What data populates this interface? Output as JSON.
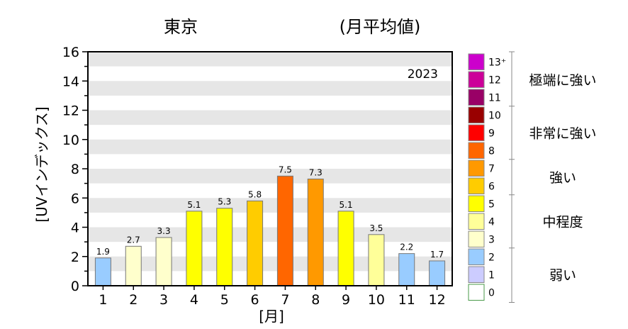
{
  "chart_data": {
    "type": "bar",
    "title_left": "東京",
    "title_right": "(月平均値)",
    "year_label": "2023",
    "xlabel": "[月]",
    "ylabel": "[UVインデックス]",
    "ylim": [
      0,
      16
    ],
    "yticks": [
      0,
      2,
      4,
      6,
      8,
      10,
      12,
      14,
      16
    ],
    "categories": [
      "1",
      "2",
      "3",
      "4",
      "5",
      "6",
      "7",
      "8",
      "9",
      "10",
      "11",
      "12"
    ],
    "values": [
      1.9,
      2.7,
      3.3,
      5.1,
      5.3,
      5.8,
      7.5,
      7.3,
      5.1,
      3.5,
      2.2,
      1.7
    ],
    "value_labels": [
      "1.9",
      "2.7",
      "3.3",
      "5.1",
      "5.3",
      "5.8",
      "7.5",
      "7.3",
      "5.1",
      "3.5",
      "2.2",
      "1.7"
    ],
    "bar_colors": [
      "#99ccff",
      "#ffffcc",
      "#ffffcc",
      "#ffff00",
      "#ffff00",
      "#ffcc00",
      "#ff6600",
      "#ff9900",
      "#ffff00",
      "#ffff99",
      "#99ccff",
      "#99ccff"
    ],
    "legend": {
      "levels": [
        {
          "label": "13+",
          "color": "#cc00cc"
        },
        {
          "label": "12",
          "color": "#cc0099"
        },
        {
          "label": "11",
          "color": "#990066"
        },
        {
          "label": "10",
          "color": "#990000"
        },
        {
          "label": "9",
          "color": "#ff0000"
        },
        {
          "label": "8",
          "color": "#ff6600"
        },
        {
          "label": "7",
          "color": "#ff9900"
        },
        {
          "label": "6",
          "color": "#ffcc00"
        },
        {
          "label": "5",
          "color": "#ffff00"
        },
        {
          "label": "4",
          "color": "#ffff99"
        },
        {
          "label": "3",
          "color": "#ffffcc"
        },
        {
          "label": "2",
          "color": "#99ccff"
        },
        {
          "label": "1",
          "color": "#ccccff"
        },
        {
          "label": "0",
          "color": "#ffffff"
        }
      ],
      "categories": [
        {
          "label": "極端に強い",
          "from": 11,
          "to": 13
        },
        {
          "label": "非常に強い",
          "from": 8,
          "to": 10
        },
        {
          "label": "強い",
          "from": 6,
          "to": 7
        },
        {
          "label": "中程度",
          "from": 3,
          "to": 5
        },
        {
          "label": "弱い",
          "from": 0,
          "to": 2
        }
      ]
    },
    "grid": "horizontal bands",
    "legend_placement": "right"
  }
}
